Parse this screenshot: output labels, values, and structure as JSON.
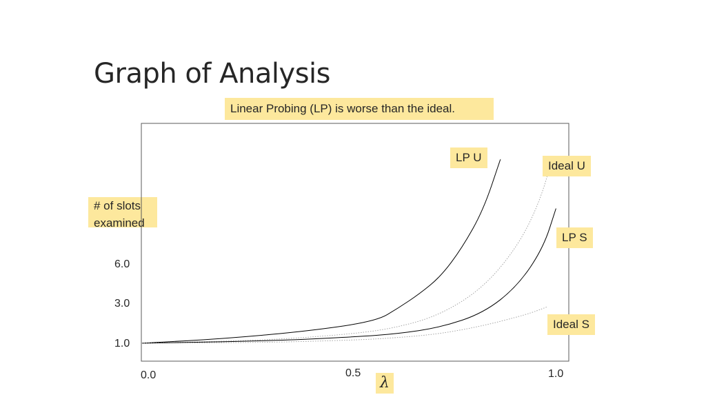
{
  "slide_title": "Graph of Analysis",
  "chart_data": {
    "type": "line",
    "title": "Linear Probing (LP) is worse than the ideal.",
    "xlabel": "λ",
    "ylabel": "# of slots examined",
    "xlim": [
      0.0,
      1.0
    ],
    "x_ticks": [
      "0.0",
      "0.5",
      "1.0"
    ],
    "y_ticks": [
      "1.0",
      "3.0",
      "6.0"
    ],
    "grid": false,
    "series": [
      {
        "name": "LP U",
        "style": "solid",
        "points": [
          [
            0.0,
            1.0
          ],
          [
            0.2,
            1.3
          ],
          [
            0.4,
            1.8
          ],
          [
            0.55,
            2.4
          ],
          [
            0.6,
            3.2
          ],
          [
            0.65,
            4.1
          ],
          [
            0.7,
            5.2
          ],
          [
            0.75,
            7.0
          ],
          [
            0.8,
            9.4
          ],
          [
            0.84,
            12.6
          ]
        ]
      },
      {
        "name": "Ideal U",
        "style": "dotted",
        "points": [
          [
            0.0,
            1.0
          ],
          [
            0.3,
            1.2
          ],
          [
            0.5,
            1.6
          ],
          [
            0.6,
            2.0
          ],
          [
            0.7,
            2.8
          ],
          [
            0.8,
            4.5
          ],
          [
            0.88,
            7.1
          ],
          [
            0.93,
            9.8
          ],
          [
            0.96,
            12.5
          ]
        ]
      },
      {
        "name": "LP S",
        "style": "solid",
        "points": [
          [
            0.0,
            1.0
          ],
          [
            0.3,
            1.15
          ],
          [
            0.5,
            1.4
          ],
          [
            0.6,
            1.6
          ],
          [
            0.7,
            2.0
          ],
          [
            0.8,
            2.9
          ],
          [
            0.88,
            4.6
          ],
          [
            0.94,
            7.0
          ],
          [
            0.97,
            9.5
          ]
        ]
      },
      {
        "name": "Ideal S",
        "style": "dotted",
        "points": [
          [
            0.0,
            1.0
          ],
          [
            0.3,
            1.05
          ],
          [
            0.5,
            1.2
          ],
          [
            0.6,
            1.35
          ],
          [
            0.7,
            1.6
          ],
          [
            0.8,
            2.1
          ],
          [
            0.9,
            2.8
          ],
          [
            0.95,
            3.3
          ]
        ]
      }
    ]
  }
}
